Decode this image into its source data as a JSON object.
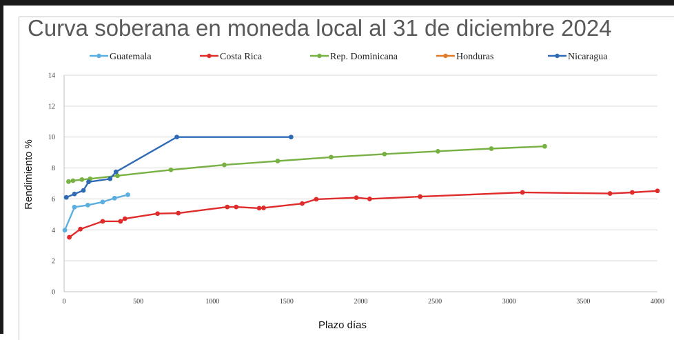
{
  "chart_data": {
    "type": "line",
    "title": "Curva soberana en moneda local al 31 de diciembre 2024",
    "xlabel": "Plazo días",
    "ylabel": "Rendimiento %",
    "xlim": [
      0,
      4000
    ],
    "ylim": [
      0,
      14
    ],
    "xticks": [
      0,
      500,
      1000,
      1500,
      2000,
      2500,
      3000,
      3500,
      4000
    ],
    "yticks": [
      0,
      2,
      4,
      6,
      8,
      10,
      12,
      14
    ],
    "grid": "horizontal",
    "legend_position": "top",
    "series": [
      {
        "name": "Guatemala",
        "color": "#5aaee0",
        "x": [
          5,
          70,
          160,
          260,
          340,
          430
        ],
        "y": [
          3.98,
          5.47,
          5.6,
          5.8,
          6.05,
          6.27
        ]
      },
      {
        "name": "Costa Rica",
        "color": "#e02b2b",
        "x": [
          35,
          110,
          260,
          380,
          410,
          630,
          770,
          1100,
          1160,
          1315,
          1345,
          1605,
          1700,
          1970,
          2060,
          2400,
          3090,
          3680,
          3830,
          4000
        ],
        "y": [
          3.52,
          4.05,
          4.55,
          4.55,
          4.72,
          5.05,
          5.08,
          5.48,
          5.48,
          5.4,
          5.42,
          5.7,
          5.98,
          6.08,
          6.0,
          6.15,
          6.42,
          6.35,
          6.42,
          6.52
        ]
      },
      {
        "name": "Rep. Dominicana",
        "color": "#78b143",
        "x": [
          30,
          60,
          120,
          175,
          360,
          720,
          1080,
          1440,
          1800,
          2160,
          2520,
          2880,
          3240
        ],
        "y": [
          7.12,
          7.18,
          7.25,
          7.3,
          7.5,
          7.88,
          8.2,
          8.45,
          8.7,
          8.9,
          9.08,
          9.25,
          9.4
        ]
      },
      {
        "name": "Honduras",
        "color": "#e07b2b",
        "x": [],
        "y": []
      },
      {
        "name": "Nicaragua",
        "color": "#2f6ab5",
        "x": [
          15,
          70,
          130,
          165,
          310,
          350,
          760,
          1530
        ],
        "y": [
          6.1,
          6.32,
          6.55,
          7.1,
          7.3,
          7.75,
          10.0,
          10.0
        ]
      }
    ]
  }
}
